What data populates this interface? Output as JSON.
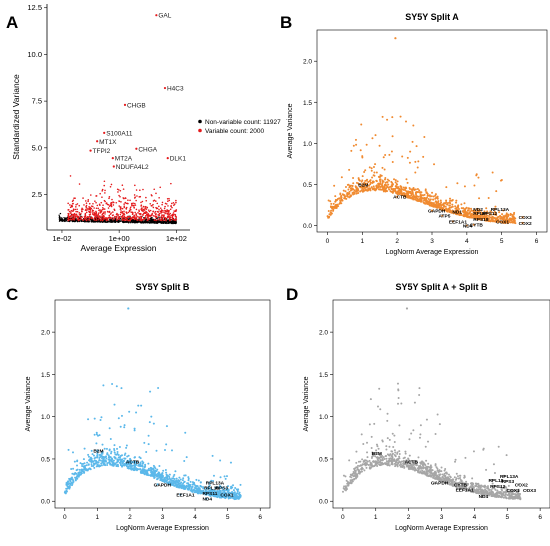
{
  "chart_data": [
    {
      "type": "scatter",
      "panel_letter": "A",
      "title": "",
      "xlabel": "Average Expression",
      "ylabel": "Standardized Variance",
      "x_scale": "log",
      "xlim": [
        0.003,
        300
      ],
      "ylim": [
        0.6,
        12.7
      ],
      "x_ticks": [
        0.01,
        1,
        100
      ],
      "x_tick_labels": [
        "1e-02",
        "1e+00",
        "1e+02"
      ],
      "y_ticks": [
        2.5,
        5.0,
        7.5,
        10.0,
        12.5
      ],
      "y_tick_labels": [
        "2.5",
        "5.0",
        "7.5",
        "10.0",
        "12.5"
      ],
      "legend": {
        "position": "right",
        "items": [
          {
            "label": "Non-variable count: 11927",
            "color": "#000000"
          },
          {
            "label": "Variable count: 2000",
            "color": "#e41a1c"
          }
        ]
      },
      "annotations": [
        {
          "label": "GAL",
          "x": 20,
          "y": 12.1
        },
        {
          "label": "H4C3",
          "x": 40,
          "y": 8.2
        },
        {
          "label": "CHGB",
          "x": 1.6,
          "y": 7.3
        },
        {
          "label": "S100A11",
          "x": 0.3,
          "y": 5.8
        },
        {
          "label": "MT1X",
          "x": 0.17,
          "y": 5.35
        },
        {
          "label": "TFPI2",
          "x": 0.1,
          "y": 4.85
        },
        {
          "label": "CHGA",
          "x": 4,
          "y": 4.95
        },
        {
          "label": "MT2A",
          "x": 0.6,
          "y": 4.45
        },
        {
          "label": "DLK1",
          "x": 50,
          "y": 4.45
        },
        {
          "label": "NDUFA4L2",
          "x": 0.65,
          "y": 4.0
        }
      ]
    },
    {
      "type": "scatter",
      "panel_letter": "B",
      "title": "SY5Y Split A",
      "xlabel": "LogNorm Average Expression",
      "ylabel": "Average Variance",
      "xlim": [
        -0.3,
        6.3
      ],
      "ylim": [
        -0.08,
        2.38
      ],
      "x_ticks": [
        0,
        1,
        2,
        3,
        4,
        5,
        6
      ],
      "y_ticks": [
        0.0,
        0.5,
        1.0,
        1.5,
        2.0
      ],
      "y_tick_labels": [
        "0.0",
        "0.5",
        "1.0",
        "1.5",
        "2.0"
      ],
      "point_color": "#f08a30",
      "annotations": [
        {
          "label": "B2M",
          "x": 1.0,
          "y": 0.5
        },
        {
          "label": "ACTB",
          "x": 2.0,
          "y": 0.35
        },
        {
          "label": "GAPDH",
          "x": 3.0,
          "y": 0.18
        },
        {
          "label": "ATP5",
          "x": 3.3,
          "y": 0.12
        },
        {
          "label": "ND1",
          "x": 3.7,
          "y": 0.17
        },
        {
          "label": "EEF1A1",
          "x": 3.6,
          "y": 0.05
        },
        {
          "label": "ND4",
          "x": 4.0,
          "y": 0.0
        },
        {
          "label": "ND2",
          "x": 4.3,
          "y": 0.2
        },
        {
          "label": "RPL13A",
          "x": 4.8,
          "y": 0.2
        },
        {
          "label": "RPLP",
          "x": 4.3,
          "y": 0.15
        },
        {
          "label": "RPS12",
          "x": 4.55,
          "y": 0.15
        },
        {
          "label": "RPS18",
          "x": 4.3,
          "y": 0.08
        },
        {
          "label": "CYTB",
          "x": 4.2,
          "y": 0.01
        },
        {
          "label": "COX1",
          "x": 4.95,
          "y": 0.05
        },
        {
          "label": "COX3",
          "x": 5.6,
          "y": 0.1
        },
        {
          "label": "COX2",
          "x": 5.6,
          "y": 0.03
        }
      ]
    },
    {
      "type": "scatter",
      "panel_letter": "C",
      "title": "SY5Y Split B",
      "xlabel": "LogNorm Average Expression",
      "ylabel": "Average Variance",
      "xlim": [
        -0.3,
        6.3
      ],
      "ylim": [
        -0.08,
        2.38
      ],
      "x_ticks": [
        0,
        1,
        2,
        3,
        4,
        5,
        6
      ],
      "y_ticks": [
        0.0,
        0.5,
        1.0,
        1.5,
        2.0
      ],
      "y_tick_labels": [
        "0.0",
        "0.5",
        "1.0",
        "1.5",
        "2.0"
      ],
      "point_color": "#5bb8ea",
      "annotations": [
        {
          "label": "B2M",
          "x": 1.0,
          "y": 0.6
        },
        {
          "label": "ACTB",
          "x": 2.0,
          "y": 0.47
        },
        {
          "label": "GAPDH",
          "x": 2.85,
          "y": 0.2
        },
        {
          "label": "RPL13A",
          "x": 4.45,
          "y": 0.22
        },
        {
          "label": "RPL18",
          "x": 4.4,
          "y": 0.16
        },
        {
          "label": "RPS3",
          "x": 4.75,
          "y": 0.16
        },
        {
          "label": "EEF1A1",
          "x": 3.55,
          "y": 0.08
        },
        {
          "label": "RPS11",
          "x": 4.35,
          "y": 0.1
        },
        {
          "label": "COX1",
          "x": 4.9,
          "y": 0.08
        },
        {
          "label": "ND4",
          "x": 4.35,
          "y": 0.03
        }
      ]
    },
    {
      "type": "scatter",
      "panel_letter": "D",
      "title": "SY5Y Split A + Split B",
      "xlabel": "LogNorm Average Expression",
      "ylabel": "Average Variance",
      "xlim": [
        -0.3,
        6.3
      ],
      "ylim": [
        -0.08,
        2.38
      ],
      "x_ticks": [
        0,
        1,
        2,
        3,
        4,
        5,
        6
      ],
      "y_ticks": [
        0.0,
        0.5,
        1.0,
        1.5,
        2.0
      ],
      "y_tick_labels": [
        "0.0",
        "0.5",
        "1.0",
        "1.5",
        "2.0"
      ],
      "point_color": "#a6a6a6",
      "annotations": [
        {
          "label": "B2M",
          "x": 1.0,
          "y": 0.57
        },
        {
          "label": "ACTB",
          "x": 2.0,
          "y": 0.47
        },
        {
          "label": "GAPDH",
          "x": 2.8,
          "y": 0.22
        },
        {
          "label": "RPL13A",
          "x": 4.9,
          "y": 0.3
        },
        {
          "label": "RPL18",
          "x": 4.55,
          "y": 0.25
        },
        {
          "label": "RPS3",
          "x": 4.95,
          "y": 0.24
        },
        {
          "label": "CYTB",
          "x": 3.5,
          "y": 0.2
        },
        {
          "label": "EEF1A1",
          "x": 3.55,
          "y": 0.14
        },
        {
          "label": "RPS12",
          "x": 4.6,
          "y": 0.18
        },
        {
          "label": "COX2",
          "x": 5.35,
          "y": 0.2
        },
        {
          "label": "COX1",
          "x": 5.1,
          "y": 0.13
        },
        {
          "label": "COX3",
          "x": 5.6,
          "y": 0.13
        },
        {
          "label": "ND4",
          "x": 4.25,
          "y": 0.06
        }
      ]
    }
  ]
}
